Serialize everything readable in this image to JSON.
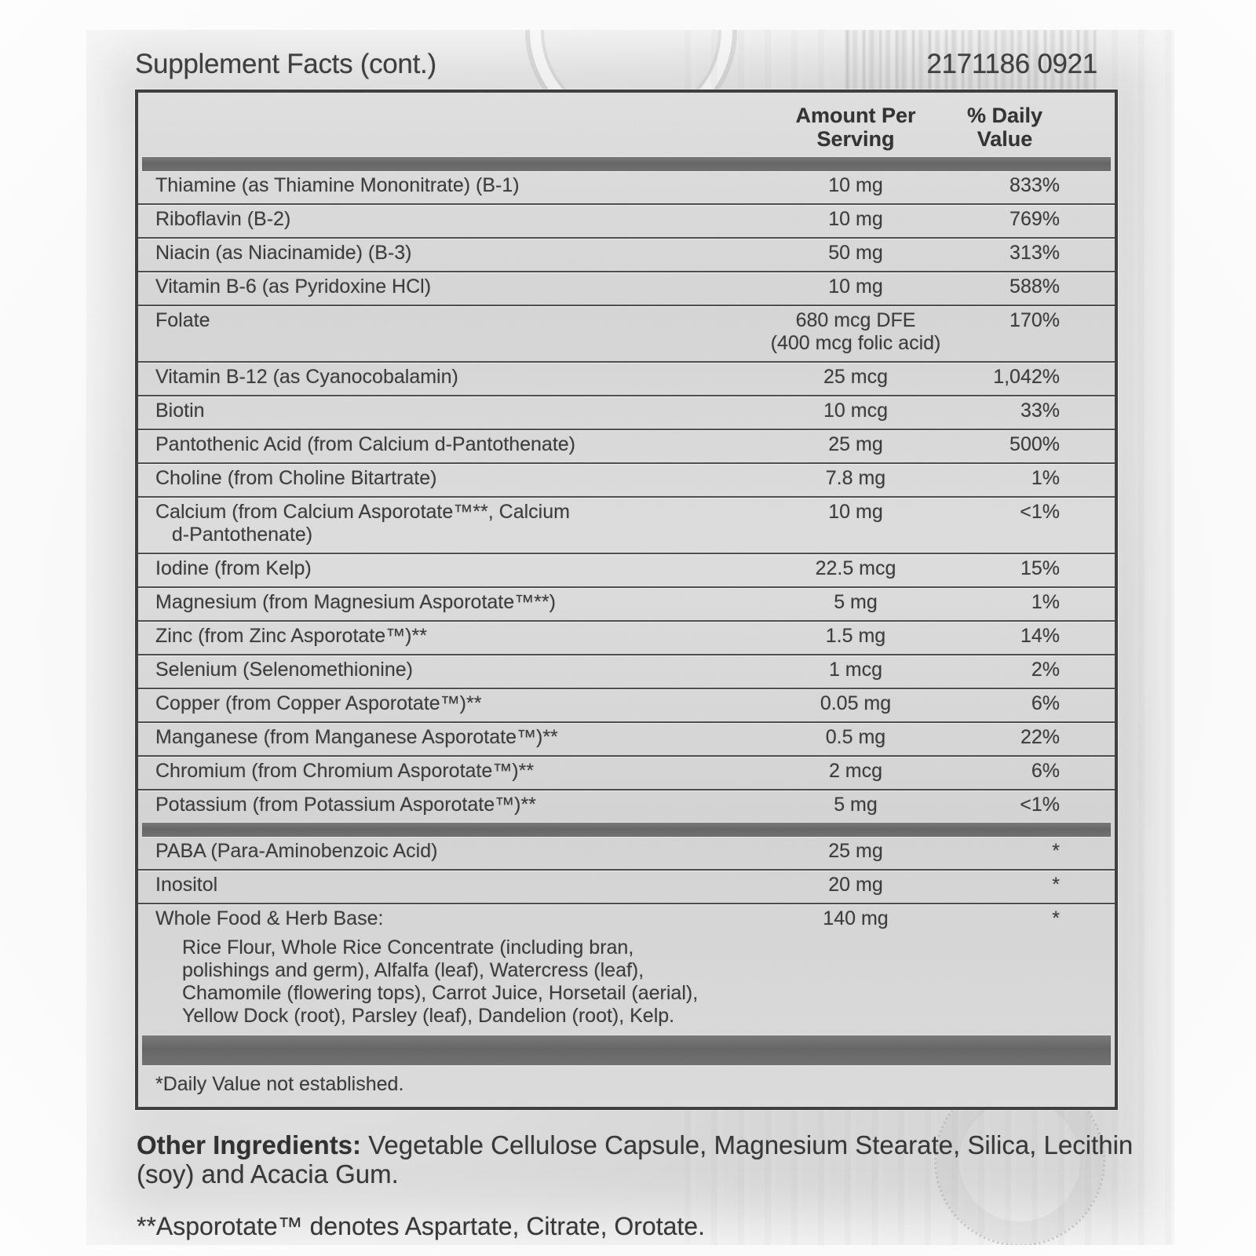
{
  "header": {
    "title": "Supplement Facts (cont.)",
    "lot_code": "2171186 0921"
  },
  "table": {
    "columns": {
      "amount": "Amount Per\nServing",
      "dv": "% Daily\nValue"
    },
    "sections": [
      {
        "rows": [
          {
            "name": "Thiamine (as Thiamine Mononitrate) (B-1)",
            "amount": "10 mg",
            "dv": "833%"
          },
          {
            "name": "Riboflavin (B-2)",
            "amount": "10 mg",
            "dv": "769%"
          },
          {
            "name": "Niacin (as Niacinamide) (B-3)",
            "amount": "50 mg",
            "dv": "313%"
          },
          {
            "name": "Vitamin B-6 (as Pyridoxine HCl)",
            "amount": "10 mg",
            "dv": "588%"
          },
          {
            "name": "Folate",
            "amount": "680 mcg DFE\n(400 mcg folic acid)",
            "dv": "170%"
          },
          {
            "name": "Vitamin B-12 (as Cyanocobalamin)",
            "amount": "25 mcg",
            "dv": "1,042%"
          },
          {
            "name": "Biotin",
            "amount": "10 mcg",
            "dv": "33%"
          },
          {
            "name": "Pantothenic Acid (from Calcium d-Pantothenate)",
            "amount": "25 mg",
            "dv": "500%"
          },
          {
            "name": "Choline (from Choline Bitartrate)",
            "amount": "7.8 mg",
            "dv": "1%"
          },
          {
            "name": "Calcium (from Calcium Asporotate™**, Calcium\n   d-Pantothenate)",
            "amount": "10 mg",
            "dv": "<1%"
          },
          {
            "name": "Iodine (from Kelp)",
            "amount": "22.5 mcg",
            "dv": "15%"
          },
          {
            "name": "Magnesium (from Magnesium Asporotate™**)",
            "amount": "5 mg",
            "dv": "1%"
          },
          {
            "name": "Zinc (from Zinc Asporotate™)**",
            "amount": "1.5 mg",
            "dv": "14%"
          },
          {
            "name": "Selenium (Selenomethionine)",
            "amount": "1 mcg",
            "dv": "2%"
          },
          {
            "name": "Copper (from Copper Asporotate™)**",
            "amount": "0.05 mg",
            "dv": "6%"
          },
          {
            "name": "Manganese (from Manganese Asporotate™)**",
            "amount": "0.5 mg",
            "dv": "22%"
          },
          {
            "name": "Chromium (from Chromium Asporotate™)**",
            "amount": "2 mcg",
            "dv": "6%"
          },
          {
            "name": "Potassium (from Potassium Asporotate™)**",
            "amount": "5 mg",
            "dv": "<1%"
          }
        ]
      },
      {
        "rows": [
          {
            "name": "PABA (Para-Aminobenzoic Acid)",
            "amount": "25 mg",
            "dv": "*"
          },
          {
            "name": "Inositol",
            "amount": "20 mg",
            "dv": "*"
          },
          {
            "name": "Whole Food & Herb Base:",
            "amount": "140 mg",
            "dv": "*",
            "sub": "Rice Flour, Whole Rice Concentrate (including bran,\npolishings and germ), Alfalfa (leaf), Watercress (leaf),\nChamomile (flowering tops), Carrot Juice, Horsetail (aerial),\nYellow Dock (root), Parsley (leaf), Dandelion (root), Kelp."
          }
        ]
      }
    ],
    "footnote": "*Daily Value not established."
  },
  "footer": {
    "other_ingredients_label": "Other Ingredients:",
    "other_ingredients_text": " Vegetable Cellulose Capsule, Magnesium Stearate, Silica, Lecithin (soy) and Acacia Gum.",
    "asporotate_note": "**Asporotate™ denotes Aspartate, Citrate, Orotate."
  }
}
